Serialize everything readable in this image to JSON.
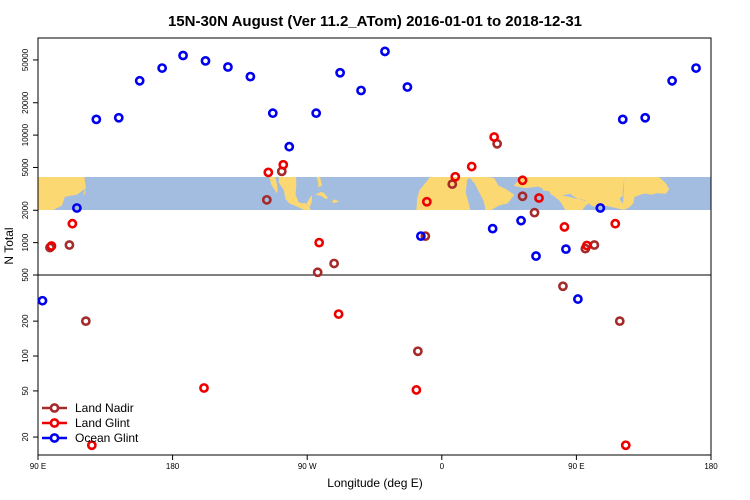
{
  "chart_data": {
    "type": "scatter",
    "title": "15N-30N August (Ver 11.2_ATom)   2016-01-01 to 2018-12-31",
    "xlabel": "Longitude (deg E)",
    "ylabel": "N Total",
    "x_ticks": [
      {
        "value": 90,
        "label": "90 E"
      },
      {
        "value": 180,
        "label": "180"
      },
      {
        "value": 270,
        "label": "90 W"
      },
      {
        "value": 360,
        "label": "0"
      },
      {
        "value": 450,
        "label": "90 E"
      },
      {
        "value": 540,
        "label": "180"
      }
    ],
    "xlim": [
      90,
      540
    ],
    "upper_panel": {
      "scale": "log",
      "ylim": [
        500,
        80000
      ],
      "y_ticks": [
        {
          "value": 500,
          "label": "500"
        },
        {
          "value": 1000,
          "label": "1000"
        },
        {
          "value": 2000,
          "label": "2000"
        },
        {
          "value": 5000,
          "label": "5000"
        },
        {
          "value": 10000,
          "label": "10000"
        },
        {
          "value": 20000,
          "label": "20000"
        },
        {
          "value": 50000,
          "label": "50000"
        }
      ]
    },
    "lower_panel": {
      "scale": "log",
      "ylim": [
        14,
        500
      ],
      "y_ticks": [
        {
          "value": 20,
          "label": "20"
        },
        {
          "value": 50,
          "label": "50"
        },
        {
          "value": 100,
          "label": "100"
        },
        {
          "value": 200,
          "label": "200"
        }
      ]
    },
    "map_band": {
      "lat_range": "15N-30N",
      "land_color": "#fcd873",
      "ocean_color": "#a3bde0"
    },
    "series": [
      {
        "name": "Land Nadir",
        "color": "#a52a2a",
        "points": [
          {
            "x": 98,
            "y": 900
          },
          {
            "x": 111,
            "y": 950
          },
          {
            "x": 122,
            "y": 200
          },
          {
            "x": 243,
            "y": 2500
          },
          {
            "x": 253,
            "y": 4600
          },
          {
            "x": 277,
            "y": 530
          },
          {
            "x": 288,
            "y": 640
          },
          {
            "x": 344,
            "y": 110
          },
          {
            "x": 349,
            "y": 1150
          },
          {
            "x": 367,
            "y": 3500
          },
          {
            "x": 397,
            "y": 8300
          },
          {
            "x": 414,
            "y": 2700
          },
          {
            "x": 422,
            "y": 1900
          },
          {
            "x": 441,
            "y": 400
          },
          {
            "x": 456,
            "y": 880
          },
          {
            "x": 462,
            "y": 950
          },
          {
            "x": 479,
            "y": 200
          }
        ]
      },
      {
        "name": "Land Glint",
        "color": "#ee0000",
        "points": [
          {
            "x": 99,
            "y": 930
          },
          {
            "x": 113,
            "y": 1500
          },
          {
            "x": 126,
            "y": 17
          },
          {
            "x": 201,
            "y": 53
          },
          {
            "x": 244,
            "y": 4500
          },
          {
            "x": 254,
            "y": 5300
          },
          {
            "x": 278,
            "y": 1000
          },
          {
            "x": 291,
            "y": 230
          },
          {
            "x": 343,
            "y": 51
          },
          {
            "x": 350,
            "y": 2400
          },
          {
            "x": 369,
            "y": 4100
          },
          {
            "x": 380,
            "y": 5100
          },
          {
            "x": 395,
            "y": 9600
          },
          {
            "x": 414,
            "y": 3800
          },
          {
            "x": 425,
            "y": 2600
          },
          {
            "x": 442,
            "y": 1400
          },
          {
            "x": 457,
            "y": 940
          },
          {
            "x": 476,
            "y": 1500
          },
          {
            "x": 483,
            "y": 17
          }
        ]
      },
      {
        "name": "Ocean Glint",
        "color": "#0000ee",
        "points": [
          {
            "x": 93,
            "y": 300
          },
          {
            "x": 116,
            "y": 2100
          },
          {
            "x": 129,
            "y": 14000
          },
          {
            "x": 144,
            "y": 14500
          },
          {
            "x": 158,
            "y": 32000
          },
          {
            "x": 173,
            "y": 42000
          },
          {
            "x": 187,
            "y": 55000
          },
          {
            "x": 202,
            "y": 49000
          },
          {
            "x": 217,
            "y": 43000
          },
          {
            "x": 232,
            "y": 35000
          },
          {
            "x": 247,
            "y": 16000
          },
          {
            "x": 258,
            "y": 7800
          },
          {
            "x": 276,
            "y": 16000
          },
          {
            "x": 292,
            "y": 38000
          },
          {
            "x": 306,
            "y": 26000
          },
          {
            "x": 322,
            "y": 60000
          },
          {
            "x": 337,
            "y": 28000
          },
          {
            "x": 346,
            "y": 1150
          },
          {
            "x": 394,
            "y": 1350
          },
          {
            "x": 413,
            "y": 1600
          },
          {
            "x": 423,
            "y": 750
          },
          {
            "x": 443,
            "y": 870
          },
          {
            "x": 451,
            "y": 310
          },
          {
            "x": 466,
            "y": 2100
          },
          {
            "x": 481,
            "y": 14000
          },
          {
            "x": 496,
            "y": 14500
          },
          {
            "x": 514,
            "y": 32000
          },
          {
            "x": 530,
            "y": 42000
          }
        ]
      }
    ],
    "legend": {
      "position": "bottom-left",
      "entries": [
        "Land Nadir",
        "Land Glint",
        "Ocean Glint"
      ]
    }
  }
}
